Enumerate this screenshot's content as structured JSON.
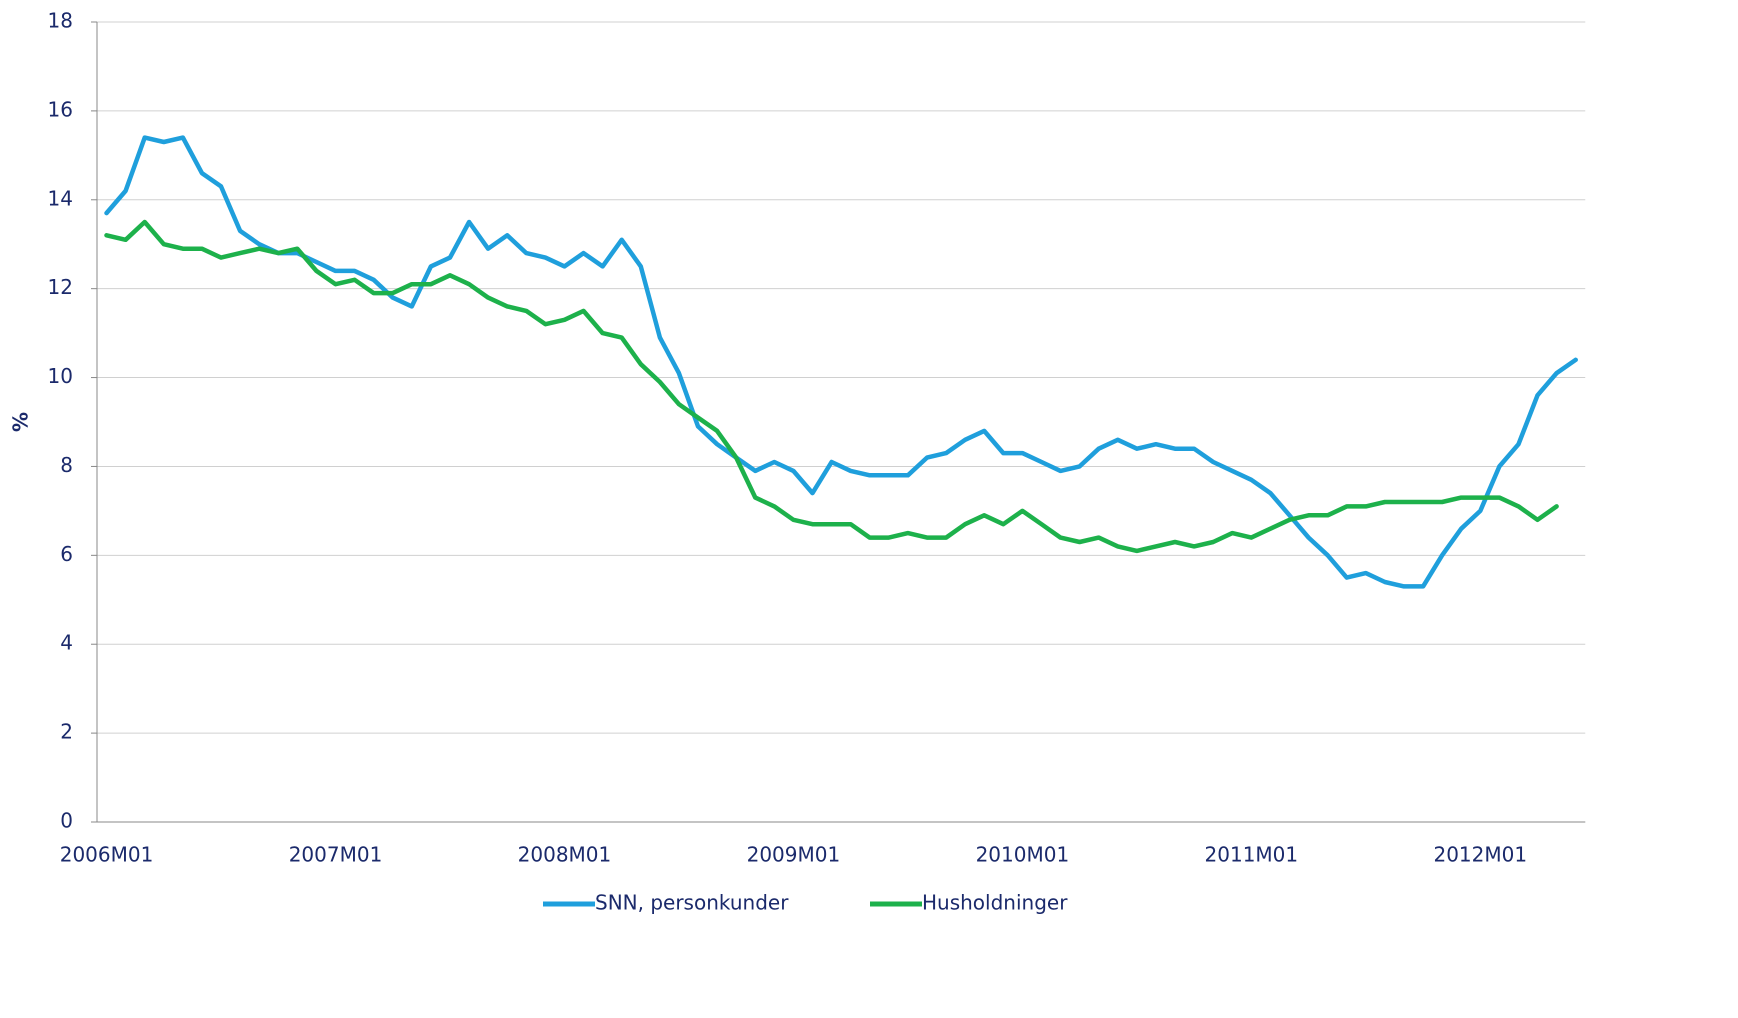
{
  "chart_data": {
    "type": "line",
    "y_label": "%",
    "categories": [
      "2006M01",
      null,
      null,
      null,
      null,
      null,
      null,
      null,
      null,
      null,
      null,
      null,
      "2007M01",
      null,
      null,
      null,
      null,
      null,
      null,
      null,
      null,
      null,
      null,
      null,
      "2008M01",
      null,
      null,
      null,
      null,
      null,
      null,
      null,
      null,
      null,
      null,
      null,
      "2009M01",
      null,
      null,
      null,
      null,
      null,
      null,
      null,
      null,
      null,
      null,
      null,
      "2010M01",
      null,
      null,
      null,
      null,
      null,
      null,
      null,
      null,
      null,
      null,
      null,
      "2011M01",
      null,
      null,
      null,
      null,
      null,
      null,
      null,
      null,
      null,
      null,
      null,
      "2012M01",
      null,
      null,
      null,
      null,
      null
    ],
    "series": [
      {
        "name": "SNN, personkunder",
        "color": "#1f9fdc",
        "values": [
          13.7,
          14.2,
          15.4,
          15.3,
          15.4,
          14.6,
          14.3,
          13.3,
          13.0,
          12.8,
          12.8,
          12.6,
          12.4,
          12.4,
          12.2,
          11.8,
          11.6,
          12.5,
          12.7,
          13.5,
          12.9,
          13.2,
          12.8,
          12.7,
          12.5,
          12.8,
          12.5,
          13.1,
          12.5,
          10.9,
          10.1,
          8.9,
          8.5,
          8.2,
          7.9,
          8.1,
          7.9,
          7.4,
          8.1,
          7.9,
          7.8,
          7.8,
          7.8,
          8.2,
          8.3,
          8.6,
          8.8,
          8.3,
          8.3,
          8.1,
          7.9,
          8.0,
          8.4,
          8.6,
          8.4,
          8.5,
          8.4,
          8.4,
          8.1,
          7.9,
          7.7,
          7.4,
          6.9,
          6.4,
          6.0,
          5.5,
          5.6,
          5.4,
          5.3,
          5.3,
          6.0,
          6.6,
          7.0,
          8.0,
          8.5,
          9.6,
          10.1,
          10.4
        ]
      },
      {
        "name": "Husholdninger",
        "color": "#1db14b",
        "values": [
          13.2,
          13.1,
          13.5,
          13.0,
          12.9,
          12.9,
          12.7,
          12.8,
          12.9,
          12.8,
          12.9,
          12.4,
          12.1,
          12.2,
          11.9,
          11.9,
          12.1,
          12.1,
          12.3,
          12.1,
          11.8,
          11.6,
          11.5,
          11.2,
          11.3,
          11.5,
          11.0,
          10.9,
          10.3,
          9.9,
          9.4,
          9.1,
          8.8,
          8.2,
          7.3,
          7.1,
          6.8,
          6.7,
          6.7,
          6.7,
          6.4,
          6.4,
          6.5,
          6.4,
          6.4,
          6.7,
          6.9,
          6.7,
          7.0,
          6.7,
          6.4,
          6.3,
          6.4,
          6.2,
          6.1,
          6.2,
          6.3,
          6.2,
          6.3,
          6.5,
          6.4,
          6.6,
          6.8,
          6.9,
          6.9,
          7.1,
          7.1,
          7.2,
          7.2,
          7.2,
          7.2,
          7.3,
          7.3,
          7.3,
          7.1,
          6.8,
          7.1,
          null
        ]
      }
    ],
    "ylim": [
      0,
      18
    ],
    "yticks": [
      0,
      2,
      4,
      6,
      8,
      10,
      12,
      14,
      16,
      18
    ],
    "grid": true,
    "legend": "bottom"
  }
}
